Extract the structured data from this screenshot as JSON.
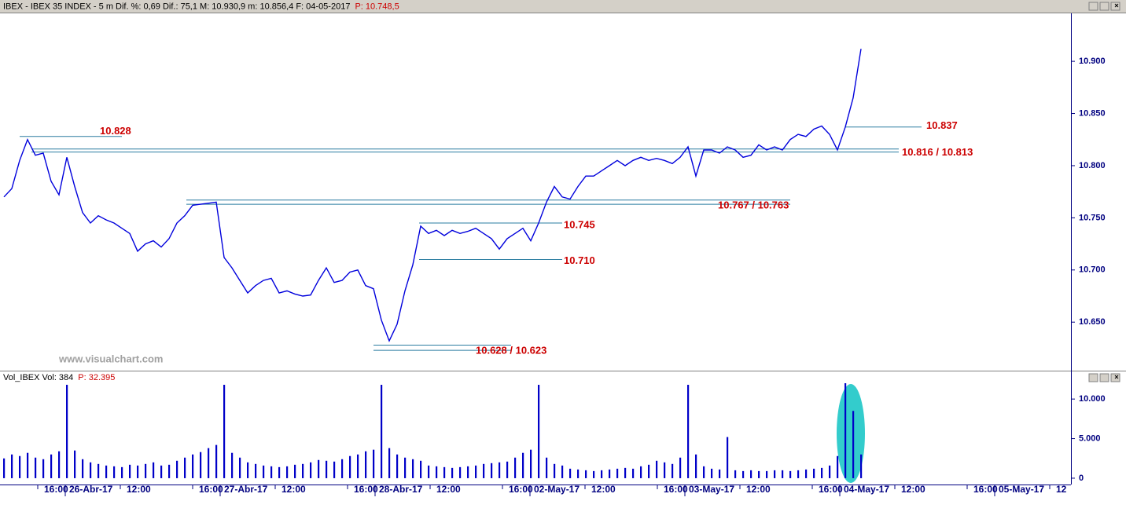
{
  "chart_data": [
    {
      "type": "line",
      "title": "IBEX - IBEX 35 INDEX -  5 m  Dif. %: 0,69  Dif.: 75,1  M: 10.930,9  m: 10.856,4  F: 04-05-2017",
      "subtitle": "P: 10.748,5",
      "watermark": "www.visualchart.com",
      "color": "#0000dc",
      "values": [
        10770,
        10778,
        10805,
        10825,
        10810,
        10812,
        10785,
        10772,
        10808,
        10780,
        10755,
        10745,
        10752,
        10748,
        10745,
        10740,
        10735,
        10718,
        10725,
        10728,
        10722,
        10730,
        10745,
        10752,
        10762,
        10763,
        10764,
        10765,
        10712,
        10702,
        10690,
        10678,
        10685,
        10690,
        10692,
        10678,
        10680,
        10677,
        10675,
        10676,
        10690,
        10702,
        10688,
        10690,
        10698,
        10700,
        10685,
        10682,
        10652,
        10632,
        10648,
        10680,
        10705,
        10742,
        10735,
        10738,
        10733,
        10738,
        10735,
        10737,
        10740,
        10735,
        10730,
        10720,
        10730,
        10735,
        10740,
        10728,
        10745,
        10765,
        10780,
        10770,
        10768,
        10780,
        10790,
        10790,
        10795,
        10800,
        10805,
        10800,
        10805,
        10808,
        10805,
        10807,
        10805,
        10802,
        10808,
        10818,
        10790,
        10815,
        10815,
        10812,
        10818,
        10815,
        10808,
        10810,
        10820,
        10815,
        10818,
        10815,
        10825,
        10830,
        10828,
        10835,
        10838,
        10830,
        10815,
        10837,
        10865,
        10912
      ],
      "ylim": [
        10605,
        10946
      ],
      "yticks": [
        {
          "value": 10650,
          "label": "10.650"
        },
        {
          "value": 10700,
          "label": "10.700"
        },
        {
          "value": 10750,
          "label": "10.750"
        },
        {
          "value": 10800,
          "label": "10.800"
        },
        {
          "value": 10850,
          "label": "10.850"
        },
        {
          "value": 10900,
          "label": "10.900"
        }
      ],
      "level_color": "#2a7ca0",
      "annotations": [
        {
          "label": "10.828",
          "levels": [
            10828
          ]
        },
        {
          "label": "10.816 / 10.813",
          "levels": [
            10816,
            10813
          ]
        },
        {
          "label": "10.767 / 10.763",
          "levels": [
            10767,
            10763
          ]
        },
        {
          "label": "10.745",
          "levels": [
            10745
          ]
        },
        {
          "label": "10.710",
          "levels": [
            10710
          ]
        },
        {
          "label": "10.628 / 10.623",
          "levels": [
            10628,
            10623
          ]
        },
        {
          "label": "10.837",
          "levels": [
            10837
          ]
        }
      ]
    },
    {
      "type": "bar",
      "title": "Vol_IBEX Vol: 384",
      "subtitle": "P: 32.395",
      "color": "#0000c8",
      "values": [
        2500,
        3000,
        2800,
        3200,
        2600,
        2400,
        3000,
        3400,
        11800,
        3500,
        2400,
        2000,
        1800,
        1600,
        1500,
        1400,
        1700,
        1600,
        1800,
        2000,
        1600,
        1700,
        2200,
        2600,
        3000,
        3300,
        3800,
        4200,
        11800,
        3200,
        2600,
        2000,
        1800,
        1600,
        1500,
        1400,
        1500,
        1700,
        1800,
        2000,
        2300,
        2200,
        2100,
        2400,
        2800,
        3000,
        3400,
        3600,
        11800,
        3800,
        3000,
        2600,
        2400,
        2200,
        1600,
        1500,
        1400,
        1300,
        1400,
        1500,
        1600,
        1800,
        1900,
        2000,
        2100,
        2600,
        3200,
        3600,
        11800,
        2600,
        1800,
        1600,
        1200,
        1100,
        1000,
        900,
        1000,
        1100,
        1200,
        1300,
        1200,
        1500,
        1700,
        2200,
        2000,
        1800,
        2600,
        11800,
        3000,
        1500,
        1200,
        1100,
        5200,
        1000,
        900,
        1000,
        900,
        900,
        1000,
        1000,
        900,
        1000,
        1100,
        1200,
        1300,
        1600,
        2800,
        12000,
        8500,
        3000
      ],
      "ylim": [
        -600,
        12000
      ],
      "yticks": [
        0,
        {
          "value": 5000,
          "label": "5.000"
        },
        {
          "value": 10000,
          "label": "10.000"
        }
      ],
      "highlight_color": "#33cccc",
      "x_labels": [
        "16:00",
        "26-Abr-17",
        "12:00",
        "16:00",
        "27-Abr-17",
        "12:00",
        "16:00",
        "28-Abr-17",
        "12:00",
        "16:00",
        "02-May-17",
        "12:00",
        "16:00",
        "03-May-17",
        "12:00",
        "16:00",
        "04-May-17",
        "12:00",
        "16:00",
        "05-May-17",
        "12"
      ]
    }
  ]
}
